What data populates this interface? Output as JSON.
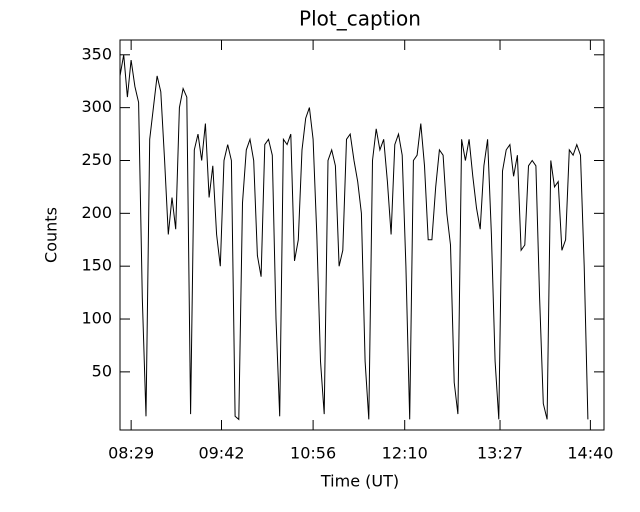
{
  "chart_data": {
    "type": "line",
    "title": "Plot_caption",
    "xlabel": "Time (UT)",
    "ylabel": "Counts",
    "x": [
      "08:20",
      "08:23",
      "08:26",
      "08:29",
      "08:32",
      "08:35",
      "08:38",
      "08:41",
      "08:44",
      "08:47",
      "08:50",
      "08:53",
      "08:56",
      "08:59",
      "09:02",
      "09:05",
      "09:08",
      "09:11",
      "09:14",
      "09:17",
      "09:20",
      "09:23",
      "09:26",
      "09:29",
      "09:32",
      "09:35",
      "09:38",
      "09:41",
      "09:44",
      "09:47",
      "09:50",
      "09:53",
      "09:56",
      "09:59",
      "10:02",
      "10:05",
      "10:08",
      "10:11",
      "10:14",
      "10:17",
      "10:20",
      "10:23",
      "10:26",
      "10:29",
      "10:32",
      "10:35",
      "10:38",
      "10:41",
      "10:44",
      "10:47",
      "10:50",
      "10:53",
      "10:56",
      "10:59",
      "11:02",
      "11:05",
      "11:08",
      "11:11",
      "11:14",
      "11:17",
      "11:20",
      "11:23",
      "11:26",
      "11:29",
      "11:32",
      "11:35",
      "11:38",
      "11:41",
      "11:44",
      "11:47",
      "11:50",
      "11:53",
      "11:56",
      "11:59",
      "12:02",
      "12:05",
      "12:08",
      "12:11",
      "12:14",
      "12:17",
      "12:20",
      "12:23",
      "12:26",
      "12:29",
      "12:32",
      "12:35",
      "12:38",
      "12:41",
      "12:44",
      "12:47",
      "12:50",
      "12:53",
      "12:56",
      "12:59",
      "13:02",
      "13:05",
      "13:08",
      "13:11",
      "13:14",
      "13:17",
      "13:20",
      "13:23",
      "13:26",
      "13:29",
      "13:32",
      "13:35",
      "13:38",
      "13:41",
      "13:44",
      "13:47",
      "13:50",
      "13:53",
      "13:56",
      "13:59",
      "14:02",
      "14:05",
      "14:08",
      "14:11",
      "14:14",
      "14:17",
      "14:20",
      "14:23",
      "14:26",
      "14:29",
      "14:32",
      "14:35",
      "14:38"
    ],
    "series": [
      {
        "color": "#000000",
        "values": [
          330,
          350,
          310,
          345,
          320,
          305,
          120,
          8,
          270,
          300,
          330,
          315,
          250,
          180,
          215,
          185,
          300,
          318,
          310,
          10,
          260,
          275,
          250,
          285,
          215,
          245,
          180,
          150,
          250,
          265,
          250,
          8,
          5,
          210,
          260,
          270,
          250,
          160,
          140,
          265,
          270,
          255,
          100,
          8,
          270,
          265,
          275,
          155,
          175,
          260,
          290,
          300,
          270,
          180,
          60,
          10,
          250,
          260,
          245,
          150,
          165,
          270,
          275,
          250,
          230,
          200,
          60,
          5,
          250,
          280,
          260,
          270,
          230,
          180,
          265,
          275,
          255,
          150,
          5,
          250,
          255,
          285,
          245,
          175,
          175,
          225,
          260,
          255,
          200,
          170,
          40,
          10,
          270,
          250,
          270,
          235,
          205,
          185,
          245,
          270,
          180,
          60,
          5,
          240,
          260,
          265,
          235,
          255,
          165,
          170,
          245,
          250,
          245,
          120,
          20,
          5,
          250,
          225,
          230,
          165,
          175,
          260,
          255,
          265,
          255,
          150,
          5
        ]
      }
    ],
    "xlim": [
      "08:20",
      "14:51"
    ],
    "xticks": [
      "08:29",
      "09:42",
      "10:56",
      "12:10",
      "13:27",
      "14:40"
    ],
    "ylim": [
      -5,
      364
    ],
    "yticks": [
      50,
      100,
      150,
      200,
      250,
      300,
      350
    ]
  }
}
